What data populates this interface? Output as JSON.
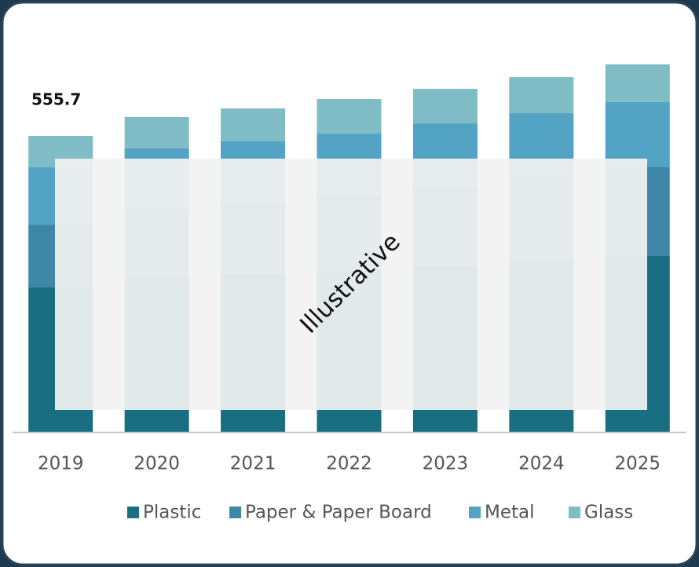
{
  "chart_data": {
    "type": "stacked_bar",
    "total_label": "555.7",
    "watermark": "Illustrative",
    "categories": [
      "2019",
      "2020",
      "2021",
      "2022",
      "2023",
      "2024",
      "2025"
    ],
    "series": [
      {
        "name": "Plastic",
        "color": "#1a6e82",
        "values": [
          271.2,
          289.5,
          295.6,
          302.5,
          312.2,
          320.1,
          330.2
        ]
      },
      {
        "name": "Paper & Paper Board",
        "color": "#3f87a6",
        "values": [
          117.9,
          128.8,
          135.3,
          141.7,
          149.4,
          158.0,
          166.6
        ]
      },
      {
        "name": "Metal",
        "color": "#52a3c4",
        "values": [
          107.6,
          113.8,
          114.5,
          115.9,
          117.6,
          120.3,
          122.3
        ]
      },
      {
        "name": "Glass",
        "color": "#7fbcc6",
        "values": [
          59.0,
          59.0,
          61.9,
          64.9,
          64.9,
          67.8,
          70.8
        ]
      }
    ]
  }
}
